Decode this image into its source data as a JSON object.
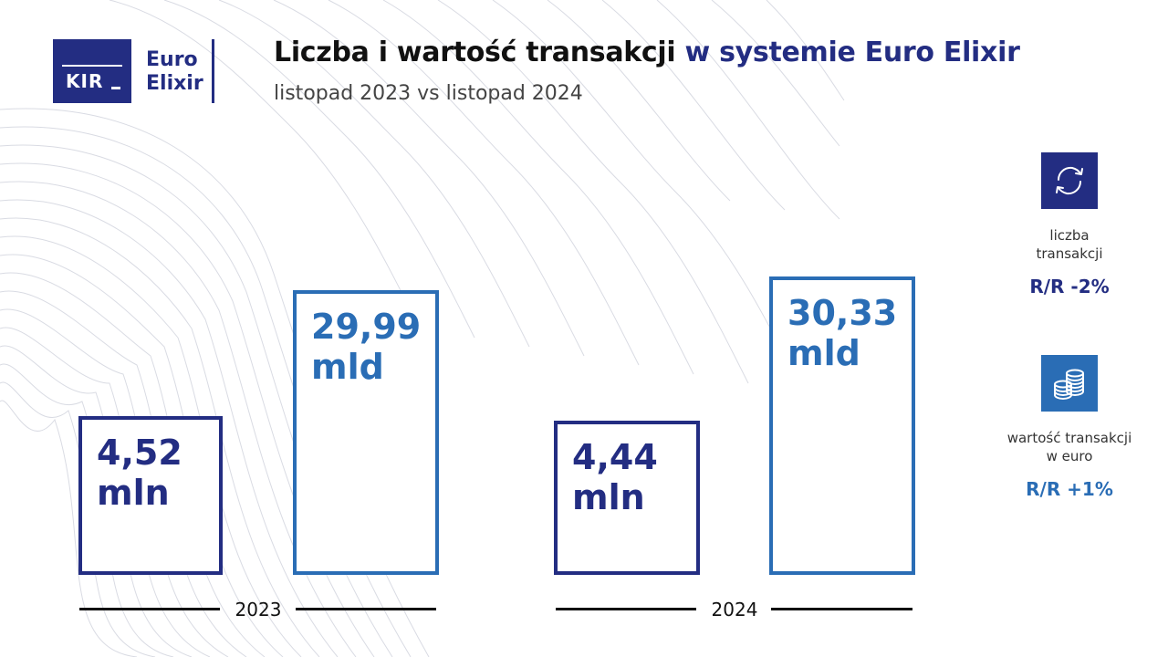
{
  "logo": {
    "kir": "KIR",
    "line1": "Euro",
    "line2": "Elixir"
  },
  "title_part1": "Liczba i wartość transakcji",
  "title_part2": "w systemie Euro Elixir",
  "subtitle": "listopad 2023 vs listopad 2024",
  "colors": {
    "navy": "#232d82",
    "blue": "#2a6db5"
  },
  "chart_data": {
    "type": "bar",
    "categories": [
      "2023",
      "2024"
    ],
    "series": [
      {
        "values": [
          4.52,
          4.44
        ],
        "labels": [
          "4,52 mln",
          "4,44 mln"
        ],
        "color": "#232d82"
      },
      {
        "values": [
          29.99,
          30.33
        ],
        "labels": [
          "29,99 mld",
          "30,33 mld"
        ],
        "color": "#2a6db5"
      }
    ],
    "title": "Liczba i wartość transakcji w systemie Euro Elixir",
    "subtitle": "listopad 2023 vs listopad 2024"
  },
  "bars": [
    {
      "line1": "4,52",
      "line2": "mln"
    },
    {
      "line1": "29,99",
      "line2": "mld"
    },
    {
      "line1": "4,44",
      "line2": "mln"
    },
    {
      "line1": "30,33",
      "line2": "mld"
    }
  ],
  "axis": {
    "label_2023": "2023",
    "label_2024": "2024"
  },
  "side": {
    "count": {
      "icon": "arrows-cycle-icon",
      "label1": "liczba",
      "label2": "transakcji",
      "value": "R/R -2%"
    },
    "value": {
      "icon": "coins-stack-icon",
      "label1": "wartość transakcji",
      "label2": "w euro",
      "value": "R/R +1%"
    }
  }
}
